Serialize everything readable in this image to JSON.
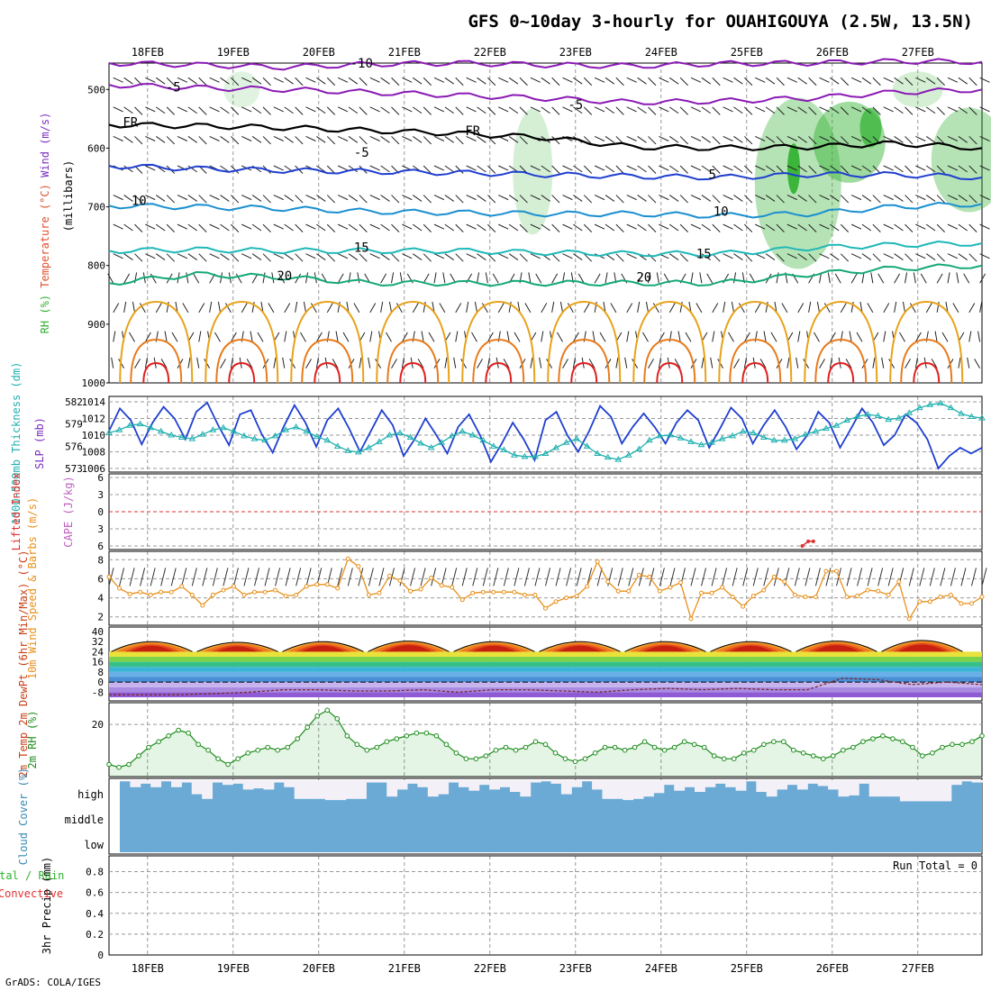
{
  "title": "GFS 0~10day 3-hourly for OUAHIGOUYA (2.5W, 13.5N)",
  "credit": "GrADS: COLA/IGES",
  "colors": {
    "temp_red": "#e02020",
    "rh_green": "#2db02d",
    "cape_purple": "#c060c0",
    "thickness_cyan": "#20b0b0",
    "slp_blue": "#1f3fd0",
    "wind_orange": "#e8901a",
    "cloud_blue": "#6aaad4",
    "li_red": "#e03030"
  },
  "chart_data": [
    {
      "panel": "upper-air",
      "type": "contour",
      "ylabel_parts": [
        "RH (%)",
        "Temperature (°C)",
        "Wind (m/s)",
        "(millibars)"
      ],
      "y_ticks": [
        500,
        600,
        700,
        800,
        900,
        1000
      ],
      "dates": [
        "18FEB",
        "19FEB",
        "20FEB",
        "21FEB",
        "22FEB",
        "23FEB",
        "24FEB",
        "25FEB",
        "26FEB",
        "27FEB"
      ],
      "temperature_labels": [
        {
          "text": "-10",
          "t": 2.5,
          "p": 463
        },
        {
          "text": "-5",
          "t": 0.3,
          "p": 503
        },
        {
          "text": "-5",
          "t": 5.0,
          "p": 533
        },
        {
          "text": "FR",
          "t": -0.2,
          "p": 563
        },
        {
          "text": "FR",
          "t": 3.8,
          "p": 578
        },
        {
          "text": "-5",
          "t": 2.5,
          "p": 615
        },
        {
          "text": "5",
          "t": 6.6,
          "p": 652
        },
        {
          "text": "10",
          "t": -0.1,
          "p": 697
        },
        {
          "text": "10",
          "t": 6.7,
          "p": 715
        },
        {
          "text": "15",
          "t": 2.5,
          "p": 777
        },
        {
          "text": "15",
          "t": 6.5,
          "p": 787
        },
        {
          "text": "20",
          "t": 1.6,
          "p": 825
        },
        {
          "text": "20",
          "t": 5.8,
          "p": 827
        }
      ],
      "isotherms": [
        {
          "label": "-10",
          "levels": [
            455,
            458,
            462,
            457,
            455,
            458,
            460,
            456,
            455,
            452,
            453
          ]
        },
        {
          "label": "-5",
          "levels": [
            492,
            497,
            500,
            505,
            510,
            515,
            522,
            520,
            515,
            505,
            500
          ]
        },
        {
          "label": "FR",
          "levels": [
            560,
            562,
            565,
            570,
            575,
            582,
            598,
            600,
            598,
            592,
            600
          ]
        },
        {
          "label": "5",
          "levels": [
            630,
            635,
            638,
            640,
            642,
            645,
            648,
            650,
            645,
            645,
            650
          ]
        },
        {
          "label": "10",
          "levels": [
            698,
            700,
            703,
            708,
            710,
            712,
            712,
            715,
            712,
            700,
            695
          ]
        },
        {
          "label": "15",
          "levels": [
            775,
            773,
            775,
            775,
            775,
            778,
            780,
            780,
            770,
            765,
            762
          ]
        },
        {
          "label": "20",
          "levels": [
            830,
            815,
            820,
            830,
            830,
            830,
            830,
            830,
            815,
            805,
            800
          ]
        }
      ]
    },
    {
      "panel": "thickness-slp",
      "type": "line",
      "ylabel_left": "1000-500mb Thickness (dm)",
      "ylabel_right": "SLP (mb)",
      "y_ticks_left": [
        573,
        576,
        579,
        582
      ],
      "y_ticks_right": [
        1006,
        1008,
        1010,
        1012,
        1014
      ],
      "series": [
        {
          "name": "SLP (mb)",
          "axis": "right",
          "values": [
            1010.5,
            1013.2,
            1011.8,
            1008.9,
            1011.5,
            1013.4,
            1012.0,
            1009.5,
            1012.8,
            1013.9,
            1011.2,
            1008.8,
            1012.5,
            1013.0,
            1010.1,
            1007.9,
            1011.0,
            1013.6,
            1011.5,
            1008.6,
            1011.8,
            1013.2,
            1010.8,
            1008.0,
            1010.5,
            1013.0,
            1011.2,
            1007.5,
            1009.5,
            1012.0,
            1010.0,
            1007.8,
            1011.0,
            1012.5,
            1010.0,
            1006.8,
            1009.0,
            1011.5,
            1009.5,
            1007.0,
            1011.8,
            1012.8,
            1010.0,
            1008.0,
            1010.5,
            1013.5,
            1012.2,
            1009.0,
            1011.0,
            1012.6,
            1011.0,
            1009.0,
            1011.5,
            1013.0,
            1011.8,
            1008.5,
            1010.8,
            1013.3,
            1012.0,
            1009.0,
            1011.2,
            1013.0,
            1011.0,
            1008.3,
            1010.0,
            1012.8,
            1011.5,
            1008.5,
            1010.8,
            1013.2,
            1011.5,
            1008.8,
            1010.0,
            1012.5,
            1011.5,
            1009.5,
            1006.0,
            1007.5,
            1008.5,
            1007.8,
            1008.5
          ]
        },
        {
          "name": "1000-500mb Thickness (dm)",
          "axis": "left",
          "values": [
            577.8,
            578.2,
            578.8,
            579.0,
            578.5,
            578.0,
            577.5,
            577.2,
            577.0,
            577.6,
            578.2,
            578.5,
            578.0,
            577.4,
            577.0,
            576.8,
            577.4,
            578.2,
            578.6,
            578.0,
            577.3,
            576.8,
            576.0,
            575.4,
            575.2,
            575.8,
            576.6,
            577.5,
            577.8,
            577.2,
            576.4,
            575.8,
            576.5,
            577.4,
            578.0,
            577.5,
            576.8,
            576.0,
            575.5,
            574.8,
            574.6,
            574.6,
            575.0,
            575.8,
            576.5,
            577.0,
            576.0,
            575.0,
            574.5,
            574.2,
            574.8,
            575.6,
            576.8,
            577.4,
            577.5,
            577.1,
            576.6,
            576.2,
            576.5,
            577.0,
            577.4,
            578.0,
            577.8,
            577.2,
            576.8,
            576.8,
            577.0,
            577.6,
            578.0,
            578.4,
            578.8,
            579.5,
            580.0,
            580.3,
            580.1,
            579.6,
            579.8,
            580.5,
            581.2,
            581.6,
            581.8,
            581.2,
            580.4,
            580.0,
            579.8
          ]
        }
      ]
    },
    {
      "panel": "instability",
      "type": "line",
      "ylabel_left": "Lifted Index",
      "ylabel_right": "CAPE (J/kg)",
      "y_ticks": [
        -6,
        -3,
        0,
        3,
        6
      ],
      "y_tick_labels": [
        "6",
        "3",
        "0",
        "3",
        "6"
      ],
      "series": [
        {
          "name": "Lifted Index",
          "values_note": "",
          "reference": 0
        }
      ],
      "segment": {
        "x": [
          7.65,
          7.72,
          7.78
        ],
        "y": [
          6.0,
          5.2,
          5.2
        ]
      }
    },
    {
      "panel": "wind10m",
      "type": "line",
      "ylabel": "10m Wind Speed & Barbs (m/s)",
      "y_ticks": [
        2,
        4,
        6,
        8
      ],
      "series": [
        {
          "name": "10m Wind Speed",
          "values": [
            6.2,
            5.0,
            4.4,
            4.6,
            4.3,
            4.6,
            4.6,
            5.2,
            4.3,
            3.2,
            4.3,
            4.8,
            5.2,
            4.3,
            4.6,
            4.6,
            4.8,
            4.2,
            4.3,
            5.2,
            5.4,
            5.4,
            5.0,
            8.1,
            7.3,
            4.3,
            4.5,
            6.3,
            5.8,
            4.7,
            4.9,
            6.1,
            5.3,
            5.1,
            3.8,
            4.5,
            4.6,
            4.6,
            4.6,
            4.6,
            4.3,
            4.3,
            2.9,
            3.6,
            4.0,
            4.2,
            5.2,
            7.8,
            5.7,
            4.7,
            4.7,
            6.4,
            6.2,
            4.7,
            5.1,
            5.6,
            1.8,
            4.5,
            4.5,
            5.1,
            4.1,
            3.1,
            4.2,
            4.8,
            6.2,
            5.7,
            4.3,
            4.1,
            4.1,
            6.8,
            6.8,
            4.1,
            4.2,
            4.8,
            4.7,
            4.3,
            5.7,
            1.8,
            3.6,
            3.6,
            4.1,
            4.3,
            3.4,
            3.4,
            4.1
          ]
        }
      ]
    },
    {
      "panel": "temperature2m",
      "type": "area",
      "ylabel": "2m Temp 2m DewPt (6hr Min/Max) (°C)",
      "y_ticks": [
        -8,
        0,
        8,
        16,
        24,
        32,
        40
      ],
      "series": [
        {
          "name": "2m Temp",
          "note": "daily cycle",
          "max_values": [
            24,
            34,
            33,
            34,
            35,
            34,
            34,
            34,
            34,
            35,
            36,
            37
          ],
          "min_values": [
            20,
            20,
            20,
            20,
            20,
            20,
            20,
            20,
            20,
            20,
            20,
            20
          ]
        },
        {
          "name": "2m DewPt",
          "values": [
            -10,
            -10,
            -10,
            -9,
            -8,
            -6,
            -6,
            -7,
            -7,
            -6,
            -8,
            -6,
            -6,
            -7,
            -8,
            -6,
            -5,
            -6,
            -5,
            -6,
            -6,
            3,
            2,
            -2,
            0,
            -2
          ]
        }
      ]
    },
    {
      "panel": "rh2m",
      "type": "area",
      "ylabel": "2m RH (%)",
      "y_ticks": [
        20
      ],
      "series": [
        {
          "name": "2m RH",
          "values": [
            6,
            5,
            6,
            9,
            12,
            14,
            16,
            18,
            17,
            13,
            11,
            8,
            6,
            8,
            10,
            11,
            12,
            11,
            12,
            15,
            19,
            23,
            25,
            22,
            16,
            13,
            11,
            12,
            14,
            15,
            16,
            17,
            17,
            16,
            13,
            10,
            8,
            8,
            9,
            11,
            12,
            11,
            12,
            14,
            13,
            10,
            8,
            7,
            8,
            10,
            12,
            12,
            11,
            12,
            14,
            12,
            11,
            12,
            14,
            13,
            12,
            9,
            8,
            8,
            10,
            11,
            13,
            14,
            14,
            11,
            10,
            9,
            8,
            9,
            11,
            12,
            14,
            15,
            16,
            15,
            14,
            12,
            9,
            10,
            12,
            13,
            13,
            14,
            16
          ]
        }
      ]
    },
    {
      "panel": "cloud-cover",
      "type": "bar",
      "ylabel": "Cloud Cover (%)",
      "y_tick_labels": [
        "high",
        "middle",
        "low"
      ],
      "series": [
        {
          "name": "high",
          "values": [
            95,
            70,
            85,
            70,
            95,
            70,
            90,
            40,
            20,
            90,
            80,
            85,
            60,
            65,
            60,
            90,
            70,
            20,
            20,
            20,
            15,
            15,
            20,
            20,
            90,
            90,
            30,
            60,
            85,
            70,
            30,
            40,
            90,
            70,
            55,
            80,
            60,
            70,
            50,
            30,
            90,
            95,
            85,
            40,
            70,
            95,
            60,
            20,
            20,
            15,
            20,
            30,
            45,
            80,
            55,
            70,
            50,
            70,
            85,
            70,
            55,
            95,
            50,
            30,
            60,
            80,
            60,
            85,
            75,
            60,
            30,
            35,
            85,
            30,
            30,
            30,
            10,
            10,
            10,
            10,
            10,
            80,
            95,
            90
          ]
        }
      ]
    },
    {
      "panel": "precipitation",
      "type": "bar",
      "ylabel": "3hr Precip (mm)",
      "ylabel_prefix": "Total / Rain",
      "ylabel_conv": "Convective",
      "y_ticks": [
        0,
        0.2,
        0.4,
        0.6,
        0.8
      ],
      "run_total": "Run Total = 0",
      "series": [
        {
          "name": "Total",
          "values": []
        }
      ]
    }
  ]
}
